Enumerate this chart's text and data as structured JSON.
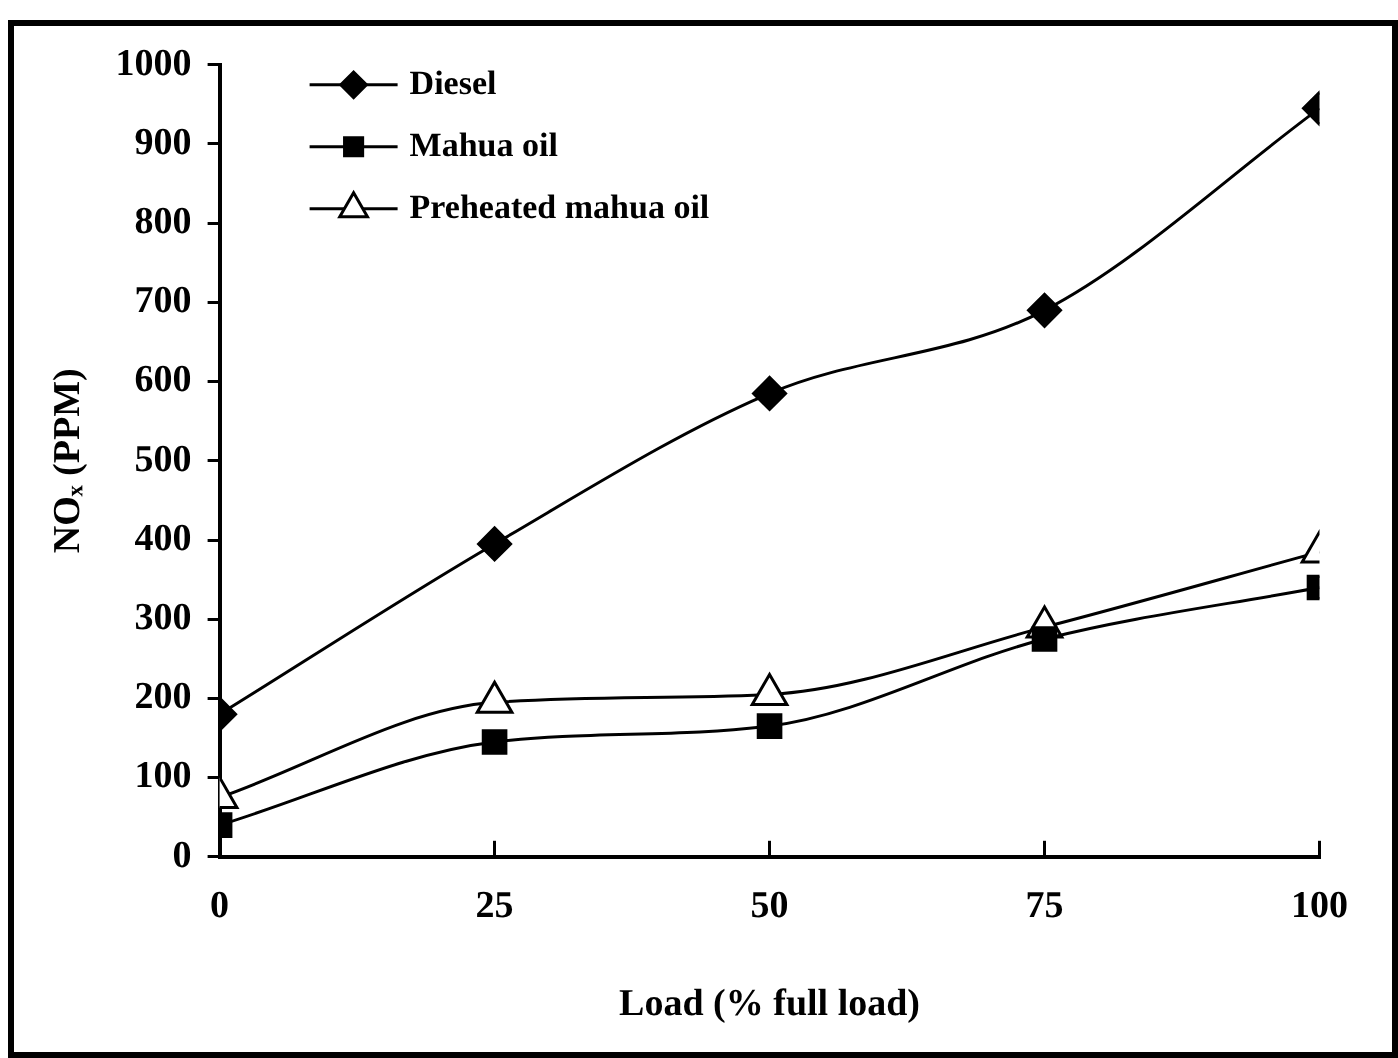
{
  "chart_data": {
    "type": "line",
    "xlabel": "Load (% full load)",
    "ylabel": "NOₓ (PPM)",
    "x": [
      0,
      25,
      50,
      75,
      100
    ],
    "xlim": [
      0,
      100
    ],
    "xticks": [
      0,
      25,
      50,
      75,
      100
    ],
    "ylim": [
      0,
      1000
    ],
    "yticks": [
      0,
      100,
      200,
      300,
      400,
      500,
      600,
      700,
      800,
      900,
      1000
    ],
    "series": [
      {
        "name": "Diesel",
        "color": "#000000",
        "marker": "diamond",
        "values": [
          180,
          395,
          585,
          690,
          945
        ]
      },
      {
        "name": "Mahua oil",
        "color": "#000000",
        "marker": "square",
        "values": [
          40,
          145,
          165,
          275,
          340
        ]
      },
      {
        "name": "Preheated mahua oil",
        "color": "#000000",
        "marker": "triangle",
        "values": [
          75,
          195,
          205,
          290,
          385
        ]
      }
    ],
    "grid": false,
    "legend": "top left",
    "line_style": "solid"
  }
}
